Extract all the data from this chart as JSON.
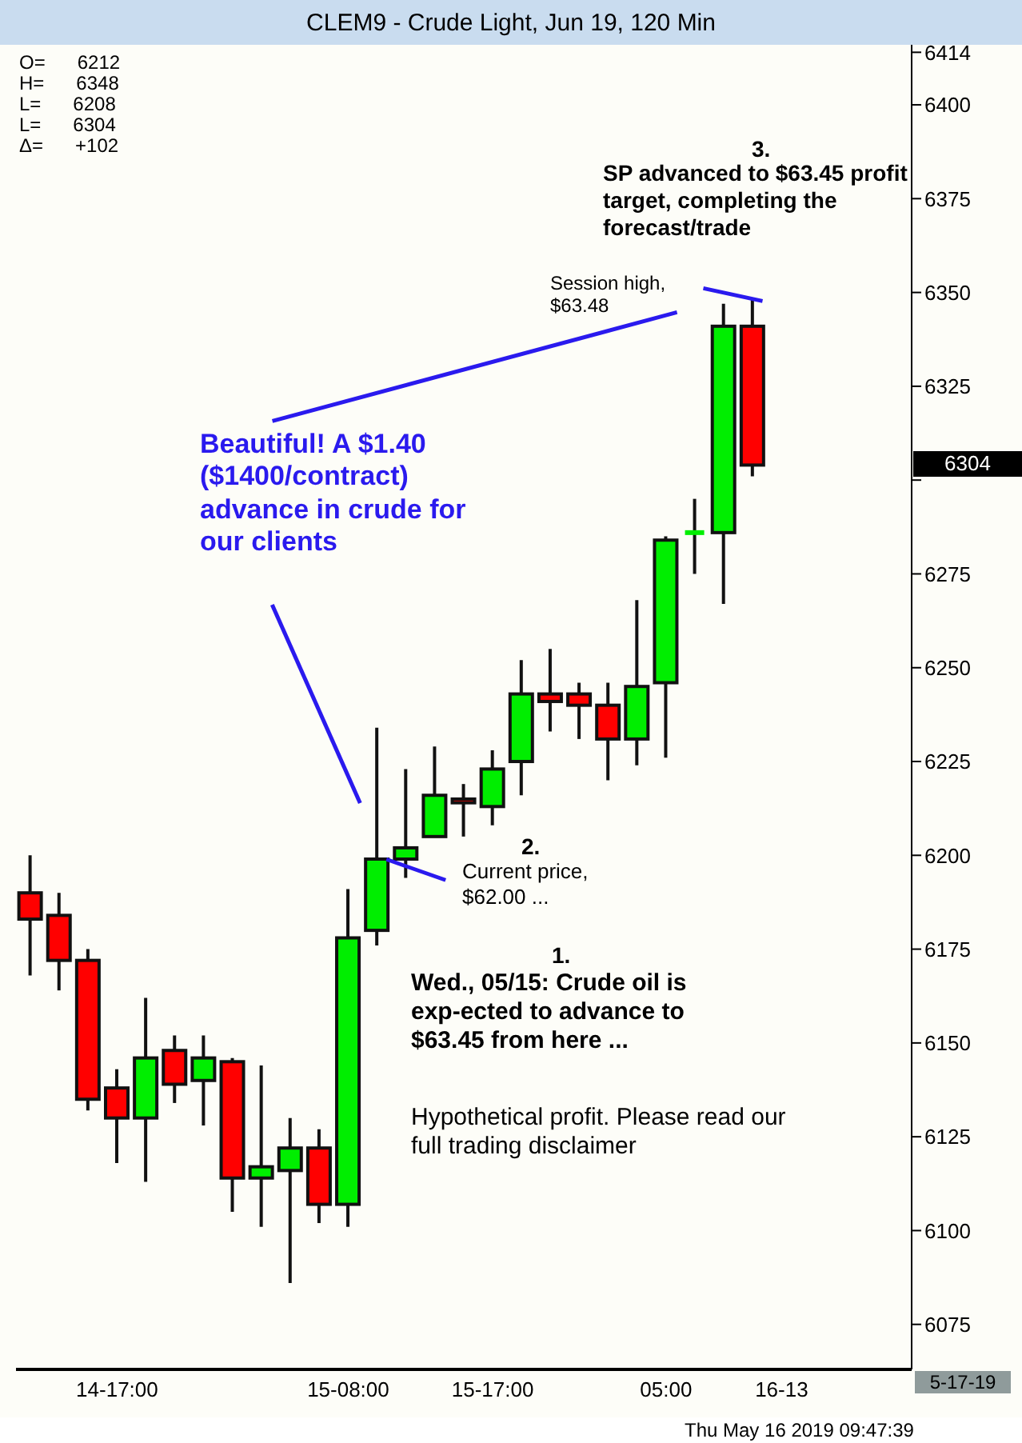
{
  "chart_data": {
    "type": "candlestick",
    "title": "CLEM9 - Crude Light, Jun 19, 120 Min",
    "categories": [
      null,
      null,
      null,
      "14-17:00",
      null,
      null,
      null,
      null,
      null,
      null,
      null,
      "15-08:00",
      null,
      null,
      null,
      null,
      "15-17:00",
      null,
      null,
      null,
      null,
      null,
      "05:00",
      null,
      null,
      null,
      "16-13",
      null,
      null,
      null,
      null
    ],
    "ohlc": [
      [
        6190,
        6200,
        6168,
        6183
      ],
      [
        6184,
        6190,
        6164,
        6172
      ],
      [
        6172,
        6175,
        6132,
        6135
      ],
      [
        6138,
        6143,
        6118,
        6130
      ],
      [
        6130,
        6162,
        6113,
        6146
      ],
      [
        6148,
        6152,
        6134,
        6139
      ],
      [
        6140,
        6152,
        6128,
        6146
      ],
      [
        6145,
        6146,
        6105,
        6114
      ],
      [
        6114,
        6144,
        6101,
        6117
      ],
      [
        6116,
        6130,
        6086,
        6122
      ],
      [
        6122,
        6127,
        6102,
        6107
      ],
      [
        6107,
        6191,
        6101,
        6178
      ],
      [
        6180,
        6234,
        6176,
        6199
      ],
      [
        6199,
        6223,
        6194,
        6202
      ],
      [
        6205,
        6229,
        6205,
        6216
      ],
      [
        6215,
        6219,
        6205,
        6214
      ],
      [
        6213,
        6228,
        6208,
        6223
      ],
      [
        6225,
        6252,
        6216,
        6243
      ],
      [
        6243,
        6255,
        6233,
        6241
      ],
      [
        6243,
        6246,
        6231,
        6240
      ],
      [
        6240,
        6246,
        6220,
        6231
      ],
      [
        6231,
        6268,
        6224,
        6245
      ],
      [
        6246,
        6285,
        6226,
        6284
      ],
      [
        6286,
        6295,
        6275,
        6286
      ],
      [
        6286,
        6347,
        6267,
        6341
      ],
      [
        6341,
        6348,
        6301,
        6304
      ],
      null,
      null,
      null,
      null,
      null
    ],
    "colors": [
      "#ff0000",
      "#ff0000",
      "#ff0000",
      "#ff0000",
      "#00ee00",
      "#ff0000",
      "#00ee00",
      "#ff0000",
      "#00ee00",
      "#00ee00",
      "#ff0000",
      "#00ee00",
      "#00ee00",
      "#00ee00",
      "#00ee00",
      "#ff0000",
      "#00ee00",
      "#00ee00",
      "#ff0000",
      "#ff0000",
      "#ff0000",
      "#00ee00",
      "#00ee00",
      "#00ee00",
      "#00ee00",
      "#ff0000",
      null,
      null,
      null,
      null,
      null
    ],
    "ylim": [
      6063,
      6416
    ],
    "yticks": [
      6075,
      6100,
      6125,
      6150,
      6175,
      6200,
      6225,
      6250,
      6275,
      {
        "value": 6300,
        "label": null
      },
      6325,
      6350,
      6375,
      6400,
      6414
    ],
    "grid": false,
    "legend": false,
    "annotations": [
      "O=      6212",
      "H=      6348",
      "L=      6208",
      "L=      6304",
      "Δ=      +102",
      "3.",
      "SP advanced to $63.45 profit target, completing the forecast/trade",
      "Session high, $63.48",
      "Beautiful!  A $1.40 ($1400/contract) advance in crude for our clients",
      "2.",
      "Current price, $62.00 ...",
      "1.",
      "Wed., 05/15: Crude oil is exp-ected to advance to $63.45 from here ...",
      "Hypothetical profit.  Please read our full trading disclaimer",
      "5-17-19",
      "Thu May 16 2019 09:47:39",
      "6304"
    ]
  }
}
